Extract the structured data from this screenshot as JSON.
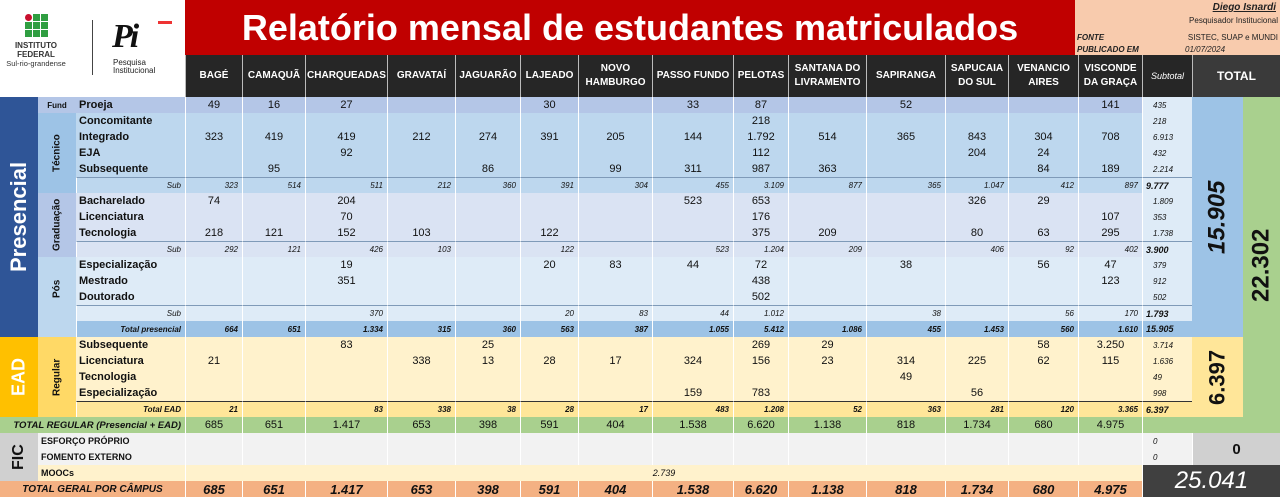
{
  "header": {
    "title": "Relatório mensal de estudantes matriculados",
    "author": "Diego Isnardi",
    "role": "Pesquisador Institucional",
    "fonte_label": "FONTE",
    "fonte_value": "SISTEC, SUAP e MUNDI",
    "publicado_label": "PUBLICADO EM",
    "publicado_value": "01/07/2024"
  },
  "logos": {
    "if_name": "INSTITUTO",
    "if_name2": "FEDERAL",
    "if_sub": "Sul-rio-grandense",
    "pi_mark": "Pi",
    "pi_line1": "Pesquisa",
    "pi_line2": "Institucional"
  },
  "columns": [
    "BAGÉ",
    "CAMAQUÃ",
    "CHARQUEADAS",
    "GRAVATAÍ",
    "JAGUARÃO",
    "LAJEADO",
    "NOVO HAMBURGO",
    "PASSO FUNDO",
    "PELOTAS",
    "SANTANA DO LIVRAMENTO",
    "SAPIRANGA",
    "SAPUCAIA DO SUL",
    "VENANCIO AIRES",
    "VISCONDE DA GRAÇA"
  ],
  "subtotal_header": "Subtotal",
  "total_header": "TOTAL",
  "sections": {
    "presencial": "Presencial",
    "ead": "EAD",
    "fic": "FIC"
  },
  "groups": {
    "fund": "Fund",
    "tecnico": "Técnico",
    "graduacao": "Graduação",
    "pos": "Pós",
    "regular": "Regular"
  },
  "rows": [
    {
      "label": "Proeja",
      "type": "item",
      "bg": "#b4c6e7",
      "values": [
        "49",
        "16",
        "27",
        "",
        "",
        "30",
        "",
        "33",
        "87",
        "",
        "52",
        "",
        "",
        "141"
      ],
      "subtotal": "435"
    },
    {
      "label": "Concomitante",
      "type": "item",
      "bg": "#bdd7ee",
      "values": [
        "",
        "",
        "",
        "",
        "",
        "",
        "",
        "",
        "218",
        "",
        "",
        "",
        "",
        ""
      ],
      "subtotal": "218"
    },
    {
      "label": "Integrado",
      "type": "item",
      "bg": "#bdd7ee",
      "values": [
        "323",
        "419",
        "419",
        "212",
        "274",
        "391",
        "205",
        "144",
        "1.792",
        "514",
        "365",
        "843",
        "304",
        "708"
      ],
      "subtotal": "6.913"
    },
    {
      "label": "EJA",
      "type": "item",
      "bg": "#bdd7ee",
      "values": [
        "",
        "",
        "92",
        "",
        "",
        "",
        "",
        "",
        "112",
        "",
        "",
        "204",
        "24",
        ""
      ],
      "subtotal": "432"
    },
    {
      "label": "Subsequente",
      "type": "item",
      "bg": "#bdd7ee",
      "values": [
        "",
        "95",
        "",
        "",
        "86",
        "",
        "99",
        "311",
        "987",
        "363",
        "",
        "",
        "84",
        "189"
      ],
      "subtotal": "2.214"
    },
    {
      "label": "Sub",
      "type": "sub",
      "bg": "#bdd7ee",
      "values": [
        "323",
        "514",
        "511",
        "212",
        "360",
        "391",
        "304",
        "455",
        "3.109",
        "877",
        "365",
        "1.047",
        "412",
        "897"
      ],
      "subtotal": "9.777"
    },
    {
      "label": "Bacharelado",
      "type": "item",
      "bg": "#dae3f3",
      "values": [
        "74",
        "",
        "204",
        "",
        "",
        "",
        "",
        "523",
        "653",
        "",
        "",
        "326",
        "29",
        ""
      ],
      "subtotal": "1.809"
    },
    {
      "label": "Licenciatura",
      "type": "item",
      "bg": "#dae3f3",
      "values": [
        "",
        "",
        "70",
        "",
        "",
        "",
        "",
        "",
        "176",
        "",
        "",
        "",
        "",
        "107"
      ],
      "subtotal": "353"
    },
    {
      "label": "Tecnologia",
      "type": "item",
      "bg": "#dae3f3",
      "values": [
        "218",
        "121",
        "152",
        "103",
        "",
        "122",
        "",
        "",
        "375",
        "209",
        "",
        "80",
        "63",
        "295"
      ],
      "subtotal": "1.738"
    },
    {
      "label": "Sub",
      "type": "sub",
      "bg": "#dae3f3",
      "values": [
        "292",
        "121",
        "426",
        "103",
        "",
        "122",
        "",
        "523",
        "1.204",
        "209",
        "",
        "406",
        "92",
        "402"
      ],
      "subtotal": "3.900"
    },
    {
      "label": "Especialização",
      "type": "item",
      "bg": "#deebf7",
      "values": [
        "",
        "",
        "19",
        "",
        "",
        "20",
        "83",
        "44",
        "72",
        "",
        "38",
        "",
        "56",
        "47"
      ],
      "subtotal": "379"
    },
    {
      "label": "Mestrado",
      "type": "item",
      "bg": "#deebf7",
      "values": [
        "",
        "",
        "351",
        "",
        "",
        "",
        "",
        "",
        "438",
        "",
        "",
        "",
        "",
        "123"
      ],
      "subtotal": "912"
    },
    {
      "label": "Doutorado",
      "type": "item",
      "bg": "#deebf7",
      "values": [
        "",
        "",
        "",
        "",
        "",
        "",
        "",
        "",
        "502",
        "",
        "",
        "",
        "",
        ""
      ],
      "subtotal": "502"
    },
    {
      "label": "Sub",
      "type": "sub",
      "bg": "#deebf7",
      "values": [
        "",
        "",
        "370",
        "",
        "",
        "20",
        "83",
        "44",
        "1.012",
        "",
        "38",
        "",
        "56",
        "170"
      ],
      "subtotal": "1.793"
    },
    {
      "label": "Total presencial",
      "type": "total",
      "bg": "#9dc3e6",
      "values": [
        "664",
        "651",
        "1.334",
        "315",
        "360",
        "563",
        "387",
        "1.055",
        "5.412",
        "1.086",
        "455",
        "1.453",
        "560",
        "1.610"
      ],
      "subtotal": "15.905"
    },
    {
      "label": "Subsequente",
      "type": "item",
      "bg": "#fff2cc",
      "values": [
        "",
        "",
        "83",
        "",
        "25",
        "",
        "",
        "",
        "269",
        "29",
        "",
        "",
        "58",
        "3.250"
      ],
      "subtotal": "3.714"
    },
    {
      "label": "Licenciatura",
      "type": "item",
      "bg": "#fff2cc",
      "values": [
        "21",
        "",
        "",
        "338",
        "13",
        "28",
        "17",
        "324",
        "156",
        "23",
        "314",
        "225",
        "62",
        "115"
      ],
      "subtotal": "1.636"
    },
    {
      "label": "Tecnologia",
      "type": "item",
      "bg": "#fff2cc",
      "values": [
        "",
        "",
        "",
        "",
        "",
        "",
        "",
        "",
        "",
        "",
        "49",
        "",
        "",
        ""
      ],
      "subtotal": "49"
    },
    {
      "label": "Especialização",
      "type": "item",
      "bg": "#fff2cc",
      "values": [
        "",
        "",
        "",
        "",
        "",
        "",
        "",
        "159",
        "783",
        "",
        "",
        "56",
        "",
        ""
      ],
      "subtotal": "998"
    },
    {
      "label": "Total EAD",
      "type": "total",
      "bg": "#ffe699",
      "values": [
        "21",
        "",
        "83",
        "338",
        "38",
        "28",
        "17",
        "483",
        "1.208",
        "52",
        "363",
        "281",
        "120",
        "3.365"
      ],
      "subtotal": "6.397"
    },
    {
      "label": "TOTAL REGULAR (Presencial + EAD)",
      "type": "totreg",
      "bg": "#a9d08e",
      "values": [
        "685",
        "651",
        "1.417",
        "653",
        "398",
        "591",
        "404",
        "1.538",
        "6.620",
        "1.138",
        "818",
        "1.734",
        "680",
        "4.975"
      ],
      "subtotal": ""
    },
    {
      "label": "ESFORÇO PRÓPRIO",
      "type": "fic",
      "bg": "#f2f2f2",
      "values": [
        "",
        "",
        "",
        "",
        "",
        "",
        "",
        "",
        "",
        "",
        "",
        "",
        "",
        ""
      ],
      "subtotal": "0"
    },
    {
      "label": "FOMENTO EXTERNO",
      "type": "fic",
      "bg": "#f2f2f2",
      "values": [
        "",
        "",
        "",
        "",
        "",
        "",
        "",
        "",
        "",
        "",
        "",
        "",
        "",
        ""
      ],
      "subtotal": "0"
    },
    {
      "label": "MOOCs",
      "type": "mooc",
      "bg": "#fff2cc",
      "value": "2.739"
    },
    {
      "label": "TOTAL GERAL POR CÂMPUS",
      "type": "geral",
      "bg": "#f4b183",
      "values": [
        "685",
        "651",
        "1.417",
        "653",
        "398",
        "591",
        "404",
        "1.538",
        "6.620",
        "1.138",
        "818",
        "1.734",
        "680",
        "4.975"
      ]
    }
  ],
  "totals": {
    "presencial": "15.905",
    "ead": "6.397",
    "regular": "22.302",
    "fic": "0",
    "geral": "25.041"
  },
  "colors": {
    "title_red": "#c00000",
    "presencial_blue": "#2f5597",
    "ead_orange": "#ffc000",
    "fic_gray": "#d0d0d0",
    "header_dark": "#262626"
  }
}
